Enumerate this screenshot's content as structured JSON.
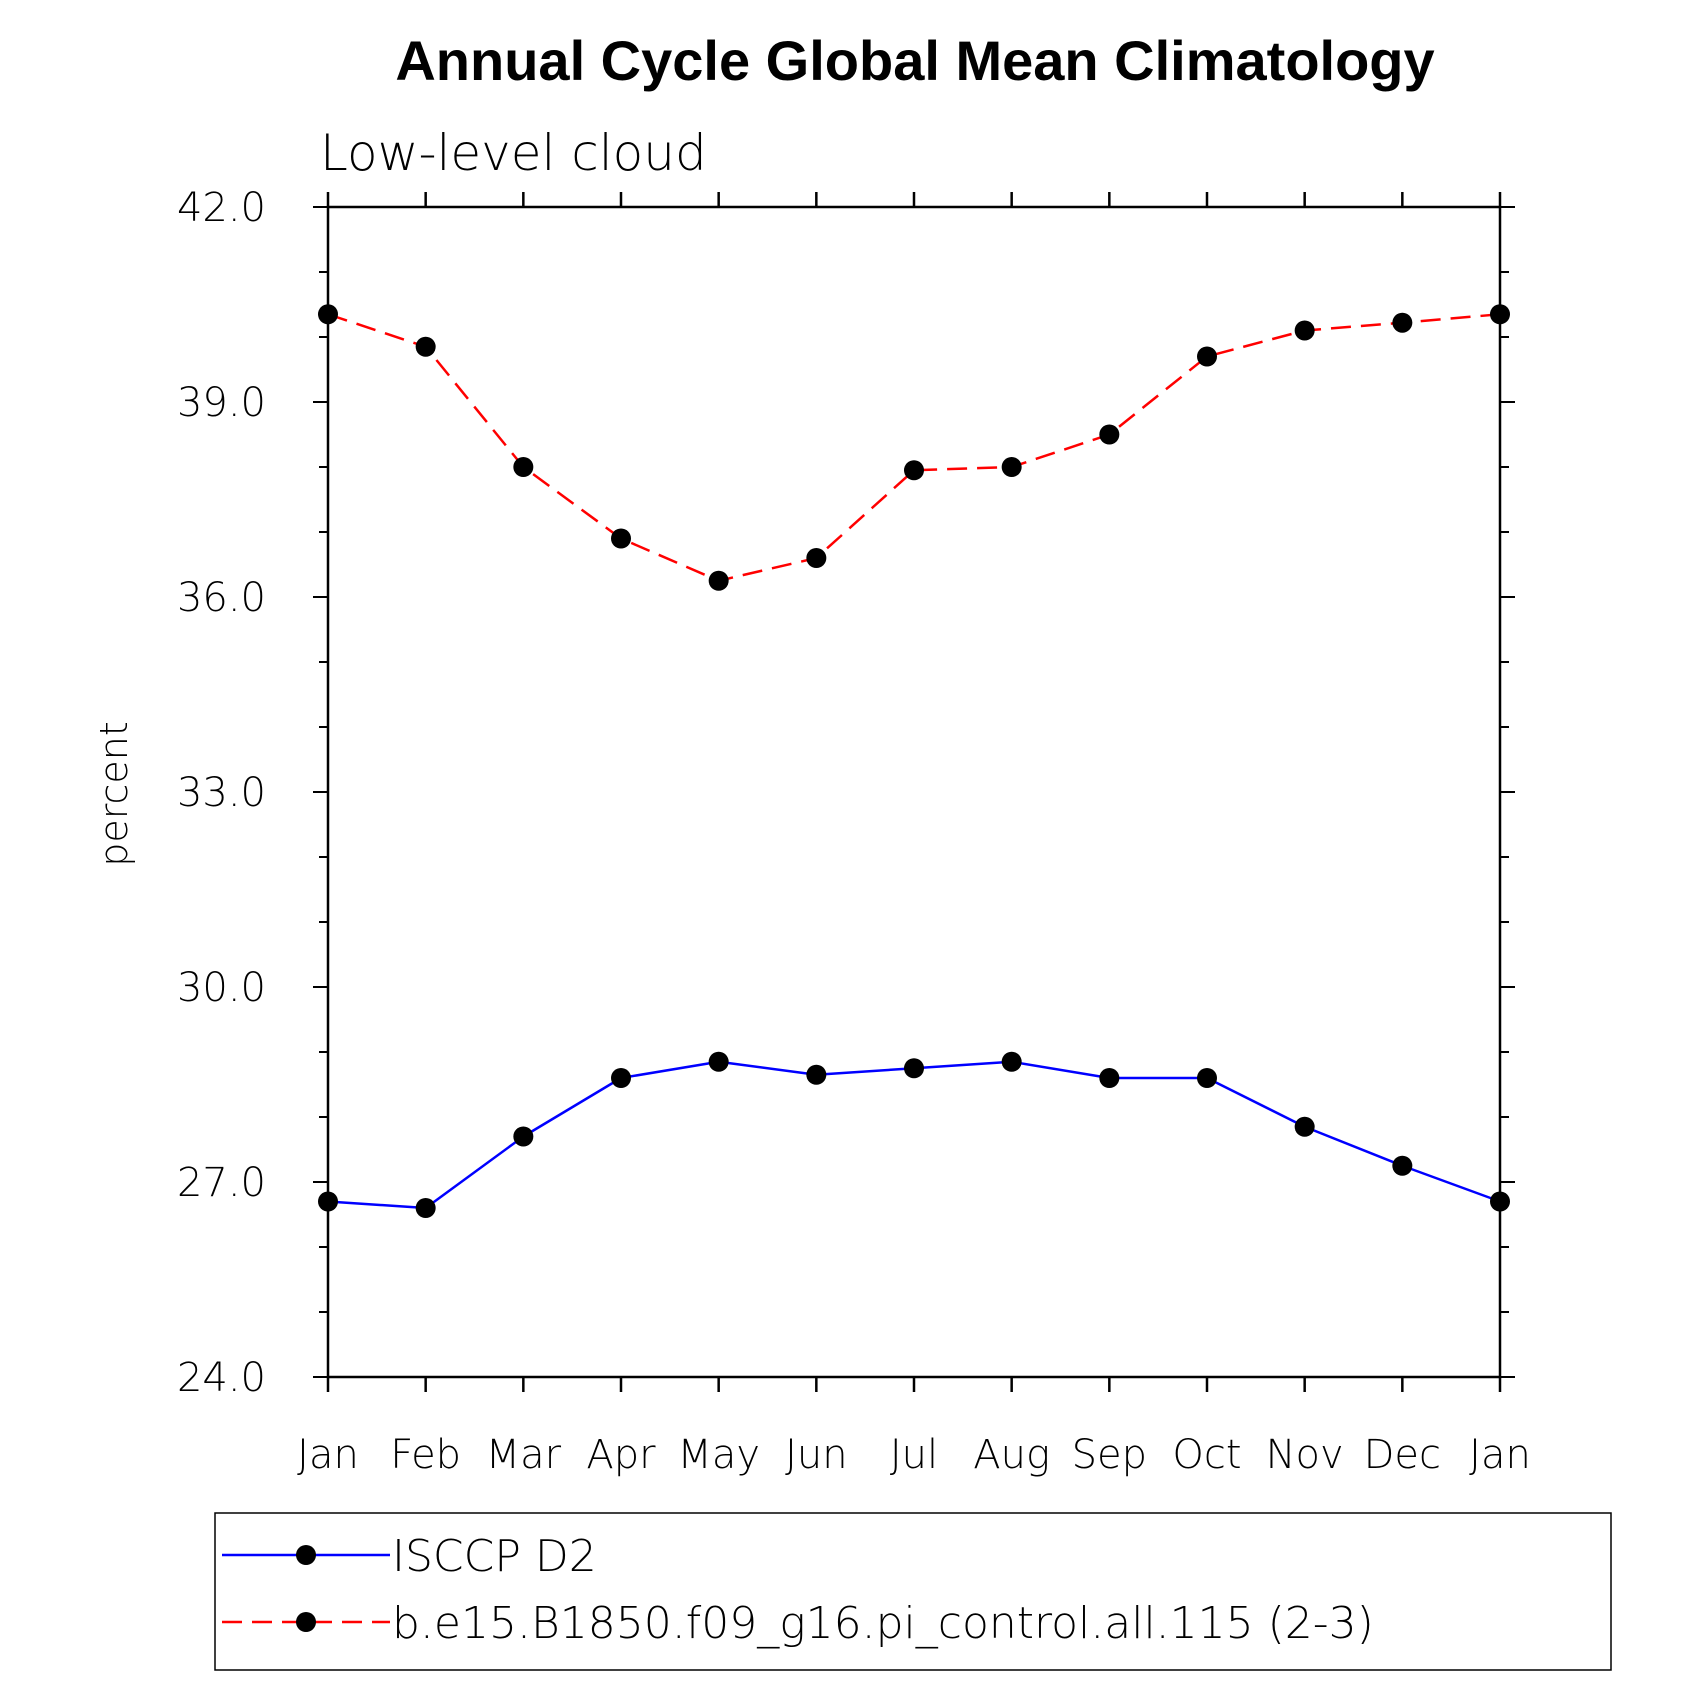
{
  "chart_data": {
    "type": "line",
    "title": "Annual Cycle Global Mean Climatology",
    "subtitle": "Low-level cloud",
    "xlabel": "",
    "ylabel": "percent",
    "categories": [
      "Jan",
      "Feb",
      "Mar",
      "Apr",
      "May",
      "Jun",
      "Jul",
      "Aug",
      "Sep",
      "Oct",
      "Nov",
      "Dec",
      "Jan"
    ],
    "ylim": [
      24.0,
      42.0
    ],
    "yticks": [
      "24.0",
      "27.0",
      "30.0",
      "33.0",
      "36.0",
      "39.0",
      "42.0"
    ],
    "grid": false,
    "legend_position": "bottom",
    "series": [
      {
        "name": "ISCCP D2",
        "color": "#0000ff",
        "dash": "solid",
        "marker": "filled-circle",
        "values": [
          26.7,
          26.6,
          27.7,
          28.6,
          28.85,
          28.65,
          28.75,
          28.85,
          28.6,
          28.6,
          27.85,
          27.25,
          26.7
        ]
      },
      {
        "name": "b.e15.B1850.f09_g16.pi_control.all.115 (2-3)",
        "color": "#ff0000",
        "dash": "dashed",
        "marker": "filled-circle",
        "values": [
          40.35,
          39.85,
          38.0,
          36.9,
          36.25,
          36.6,
          37.95,
          38.0,
          38.5,
          39.7,
          40.1,
          40.22,
          40.35
        ]
      }
    ]
  }
}
